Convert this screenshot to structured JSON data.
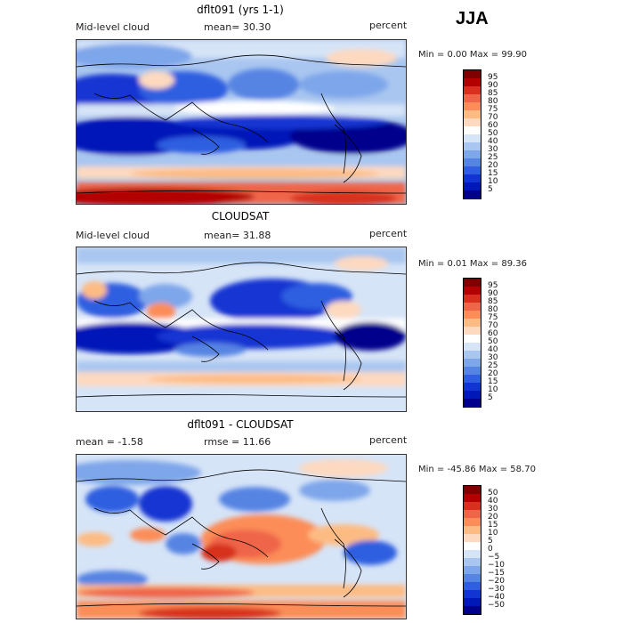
{
  "season": "JJA",
  "panels": [
    {
      "title": "dflt091 (yrs 1-1)",
      "left_label": "Mid-level cloud",
      "center_label": "mean=  30.30",
      "right_label": "percent",
      "minmax": "Min =    0.00 Max =   99.90",
      "colorbar": {
        "labels": [
          "95",
          "90",
          "85",
          "80",
          "75",
          "70",
          "60",
          "50",
          "40",
          "30",
          "25",
          "20",
          "15",
          "10",
          "5"
        ],
        "colors": [
          "#7f0000",
          "#b30000",
          "#d7301f",
          "#ef6548",
          "#fc8d59",
          "#fdbb84",
          "#fdd9c0",
          "#ffffff",
          "#d6e4f7",
          "#a9c6f0",
          "#7ea6ea",
          "#5684e3",
          "#2f5ee0",
          "#1234d2",
          "#0018b8",
          "#00008c"
        ]
      }
    },
    {
      "title": "CLOUDSAT",
      "left_label": "Mid-level cloud",
      "center_label": "mean=  31.88",
      "right_label": "percent",
      "minmax": "Min =    0.01 Max =   89.36",
      "colorbar": {
        "labels": [
          "95",
          "90",
          "85",
          "80",
          "75",
          "70",
          "60",
          "50",
          "40",
          "30",
          "25",
          "20",
          "15",
          "10",
          "5"
        ],
        "colors": [
          "#7f0000",
          "#b30000",
          "#d7301f",
          "#ef6548",
          "#fc8d59",
          "#fdbb84",
          "#fdd9c0",
          "#ffffff",
          "#d6e4f7",
          "#a9c6f0",
          "#7ea6ea",
          "#5684e3",
          "#2f5ee0",
          "#1234d2",
          "#0018b8",
          "#00008c"
        ]
      }
    },
    {
      "title": "dflt091 - CLOUDSAT",
      "left_label": "mean =   -1.58",
      "center_label": "rmse =   11.66",
      "right_label": "percent",
      "minmax": "Min = -45.86 Max =   58.70",
      "colorbar": {
        "labels": [
          "50",
          "40",
          "30",
          "20",
          "15",
          "10",
          "5",
          "0",
          "−5",
          "−10",
          "−15",
          "−20",
          "−30",
          "−40",
          "−50"
        ],
        "colors": [
          "#7f0000",
          "#b30000",
          "#d7301f",
          "#ef6548",
          "#fc8d59",
          "#fdbb84",
          "#fdd9c0",
          "#ffffff",
          "#d6e4f7",
          "#a9c6f0",
          "#7ea6ea",
          "#5684e3",
          "#2f5ee0",
          "#1234d2",
          "#0018b8",
          "#00008c"
        ]
      }
    }
  ]
}
